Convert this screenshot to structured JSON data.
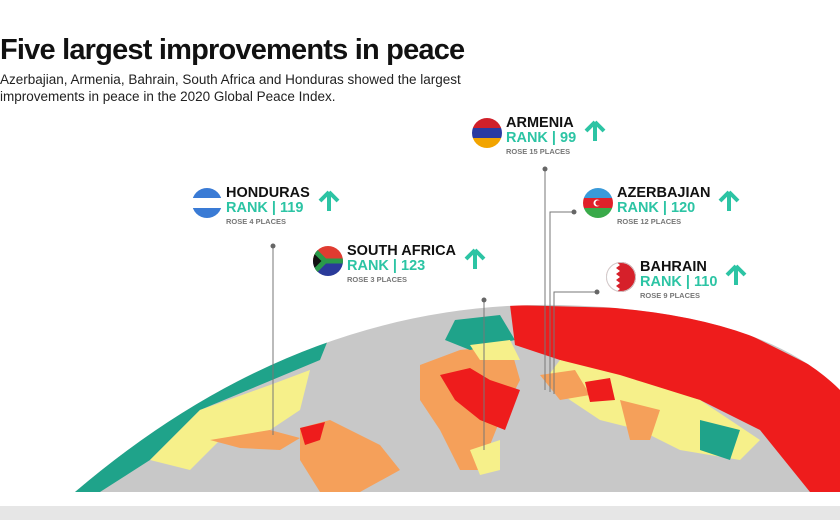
{
  "title": "Five largest improvements in peace",
  "subtitle": "Azerbajian, Armenia, Bahrain, South Africa and Honduras showed the largest improvements in peace in the 2020 Global Peace Index.",
  "colors": {
    "accent": "#2cc4a4",
    "very_low_peace": "#ee1c1c",
    "low": "#f5a05a",
    "medium": "#f6f08a",
    "high": "#1fa38a",
    "land_no_data": "#c8c8c8"
  },
  "countries": [
    {
      "name": "HONDURAS",
      "rank": "RANK | 119",
      "rose": "ROSE 4 PLACES",
      "icon": "arrow-up-icon"
    },
    {
      "name": "SOUTH AFRICA",
      "rank": "RANK | 123",
      "rose": "ROSE 3 PLACES",
      "icon": "arrow-up-icon"
    },
    {
      "name": "ARMENIA",
      "rank": "RANK | 99",
      "rose": "ROSE 15 PLACES",
      "icon": "arrow-up-icon"
    },
    {
      "name": "AZERBAJIAN",
      "rank": "RANK | 120",
      "rose": "ROSE 12 PLACES",
      "icon": "arrow-up-icon"
    },
    {
      "name": "BAHRAIN",
      "rank": "RANK | 110",
      "rose": "ROSE 9 PLACES",
      "icon": "arrow-up-icon"
    }
  ]
}
